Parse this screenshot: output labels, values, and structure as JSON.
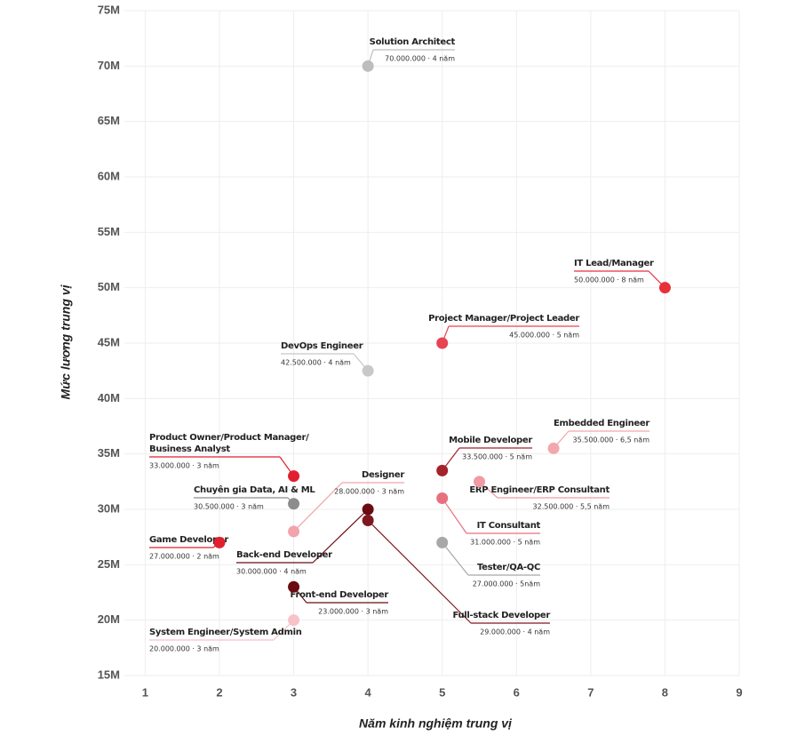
{
  "chart_data": {
    "type": "scatter",
    "xlabel": "Năm kinh nghiệm trung vị",
    "ylabel": "Mức lương trung vị",
    "xlim": [
      0.72,
      9
    ],
    "ylim": [
      15,
      75
    ],
    "xticks": [
      1,
      2,
      3,
      4,
      5,
      6,
      7,
      8,
      9
    ],
    "yticks": [
      {
        "value": 15,
        "label": "15M"
      },
      {
        "value": 20,
        "label": "20M"
      },
      {
        "value": 25,
        "label": "25M"
      },
      {
        "value": 30,
        "label": "30M"
      },
      {
        "value": 35,
        "label": "35M"
      },
      {
        "value": 40,
        "label": "40M"
      },
      {
        "value": 45,
        "label": "45M"
      },
      {
        "value": 50,
        "label": "50M"
      },
      {
        "value": 55,
        "label": "55M"
      },
      {
        "value": 60,
        "label": "60M"
      },
      {
        "value": 65,
        "label": "65M"
      },
      {
        "value": 70,
        "label": "70M"
      },
      {
        "value": 75,
        "label": "75M"
      }
    ],
    "grid": true,
    "points": [
      {
        "name": "Solution Architect",
        "detail": "70.000.000 · 4 năm",
        "x": 4,
        "y": 70,
        "color": "#bdbdbd"
      },
      {
        "name": "IT Lead/Manager",
        "detail": "50.000.000 · 8 năm",
        "x": 8,
        "y": 50,
        "color": "#e8303a"
      },
      {
        "name": "Project Manager/Project Leader",
        "detail": "45.000.000 · 5 năm",
        "x": 5,
        "y": 45,
        "color": "#e84352"
      },
      {
        "name": "DevOps Engineer",
        "detail": "42.500.000 · 4 năm",
        "x": 4,
        "y": 42.5,
        "color": "#c8c8c8"
      },
      {
        "name": "Embedded Engineer",
        "detail": "35.500.000 · 6,5 năm",
        "x": 6.5,
        "y": 35.5,
        "color": "#f2a8ab"
      },
      {
        "name": "Mobile Developer",
        "detail": "33.500.000 · 5 năm",
        "x": 5,
        "y": 33.5,
        "color": "#a3222b"
      },
      {
        "name": [
          "Product Owner/Product Manager/",
          "Business Analyst"
        ],
        "detail": "33.000.000 · 3 năm",
        "x": 3,
        "y": 33,
        "color": "#e0202f"
      },
      {
        "name": "ERP Engineer/ERP Consultant",
        "detail": "32.500.000 · 5,5 năm",
        "x": 5.5,
        "y": 32.5,
        "color": "#f09aa3"
      },
      {
        "name": "Chuyên gia Data, AI & ML",
        "detail": "30.500.000 · 3 năm",
        "x": 3,
        "y": 30.5,
        "color": "#8c8c8c"
      },
      {
        "name": "IT Consultant",
        "detail": "31.000.000 · 5 năm",
        "x": 5,
        "y": 31,
        "color": "#e8707e"
      },
      {
        "name": "Designer",
        "detail": "28.000.000 · 3 năm",
        "x": 3,
        "y": 28,
        "color": "#f2a3ab"
      },
      {
        "name": "Back-end Developer",
        "detail": "30.000.000 · 4 năm",
        "x": 4,
        "y": 30,
        "color": "#6a0c12"
      },
      {
        "name": "Full-stack Developer",
        "detail": "29.000.000 · 4 năm",
        "x": 4,
        "y": 29,
        "color": "#7e1820"
      },
      {
        "name": "Game Developer",
        "detail": "27.000.000 · 2 năm",
        "x": 2,
        "y": 27,
        "color": "#e0202f"
      },
      {
        "name": "Tester/QA-QC",
        "detail": "27.000.000 · 5năm",
        "x": 5,
        "y": 27,
        "color": "#a8a8a8"
      },
      {
        "name": "Front-end Developer",
        "detail": "23.000.000 · 3 năm",
        "x": 3,
        "y": 23,
        "color": "#6a0c12"
      },
      {
        "name": "System Engineer/System Admin",
        "detail": "20.000.000 · 3 năm",
        "x": 3,
        "y": 20,
        "color": "#f8c2c8"
      }
    ]
  }
}
